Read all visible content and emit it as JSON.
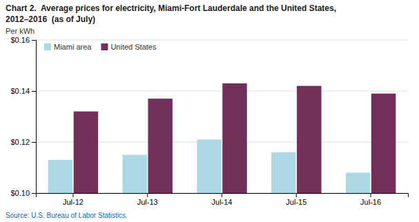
{
  "chart_data": {
    "type": "bar",
    "title": "Chart 2.  Average prices for electricity, Miami-Fort Lauderdale and the United States,",
    "subtitle": "2012–2016  (as of July)",
    "ylabel": "Per kWh",
    "source": "Source: U.S. Bureau of Labor Statistics.",
    "categories": [
      "Jul-12",
      "Jul-13",
      "Jul-14",
      "Jul-15",
      "Jul-16"
    ],
    "series": [
      {
        "name": "Miami area",
        "color": "#ADD8E6",
        "values": [
          0.113,
          0.115,
          0.121,
          0.116,
          0.108
        ]
      },
      {
        "name": "United States",
        "color": "#722F5A",
        "values": [
          0.132,
          0.137,
          0.143,
          0.142,
          0.139
        ]
      }
    ],
    "ylim": [
      0.1,
      0.16
    ],
    "yticks": [
      {
        "value": 0.1,
        "label": "$0.10"
      },
      {
        "value": 0.12,
        "label": "$0.12"
      },
      {
        "value": 0.14,
        "label": "$0.14"
      },
      {
        "value": 0.16,
        "label": "$0.16"
      }
    ],
    "grid": true,
    "legend": "top-left"
  }
}
